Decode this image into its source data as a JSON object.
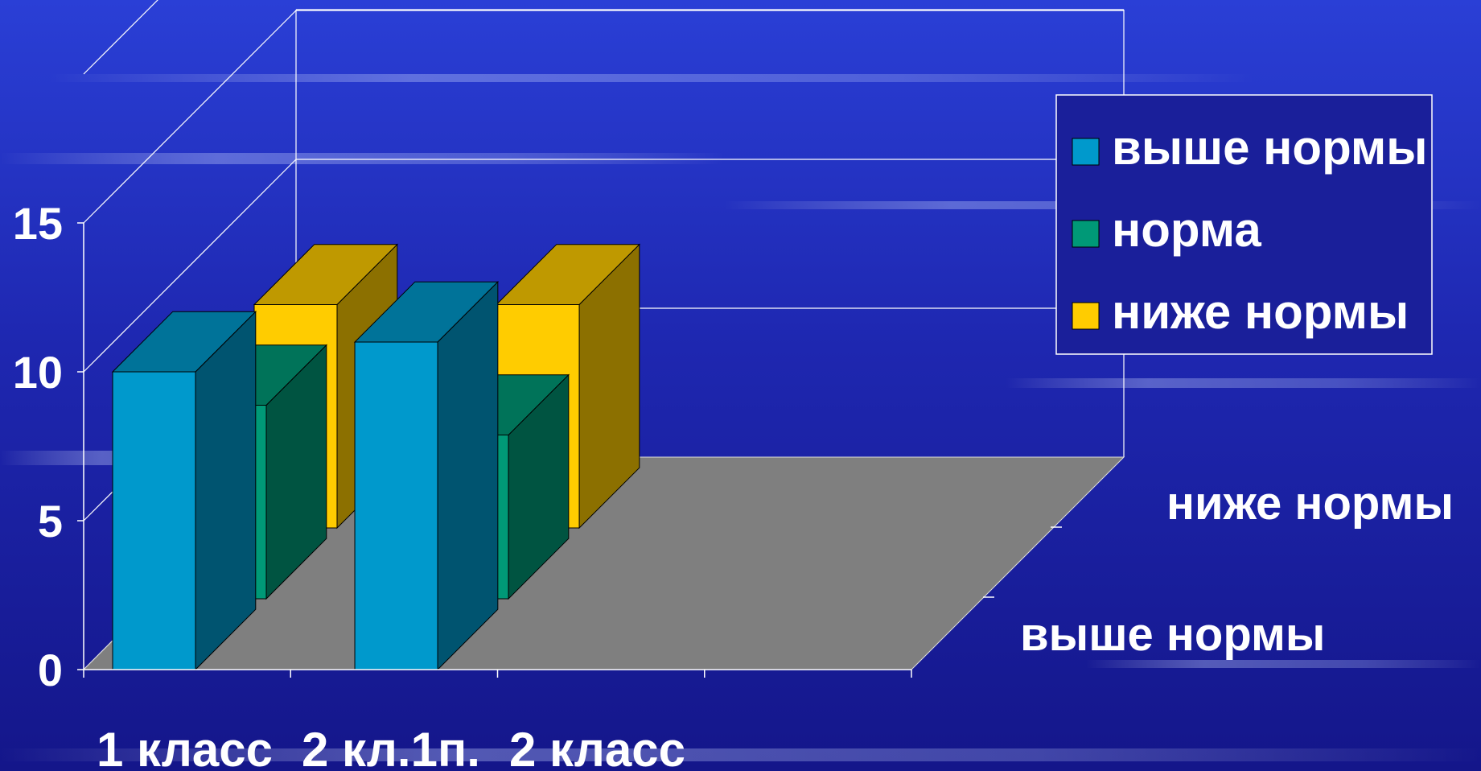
{
  "chart_data": {
    "type": "bar",
    "title": "",
    "xlabel": "",
    "ylabel": "",
    "ylim": [
      0,
      15
    ],
    "yticks": [
      "0",
      "5",
      "10",
      "15"
    ],
    "categories": [
      "1 класс",
      "2 кл.1п.",
      "2 класс"
    ],
    "depth_labels": [
      "выше нормы",
      "ниже нормы"
    ],
    "series": [
      {
        "name": "выше нормы",
        "values": [
          10,
          11,
          null
        ]
      },
      {
        "name": "норма",
        "values": [
          6.5,
          5.5,
          null
        ]
      },
      {
        "name": "ниже нормы",
        "values": [
          7.5,
          7.5,
          null
        ]
      }
    ],
    "legend": {
      "position": "top-right",
      "entries": [
        "выше нормы",
        "норма",
        "ниже нормы"
      ]
    },
    "colors": {
      "background": "#1a1f9a",
      "floor": "#7f7f7f",
      "grid": "#ffffff",
      "series": [
        "#0099cc",
        "#009977",
        "#ffcc00"
      ]
    },
    "grid": true
  }
}
